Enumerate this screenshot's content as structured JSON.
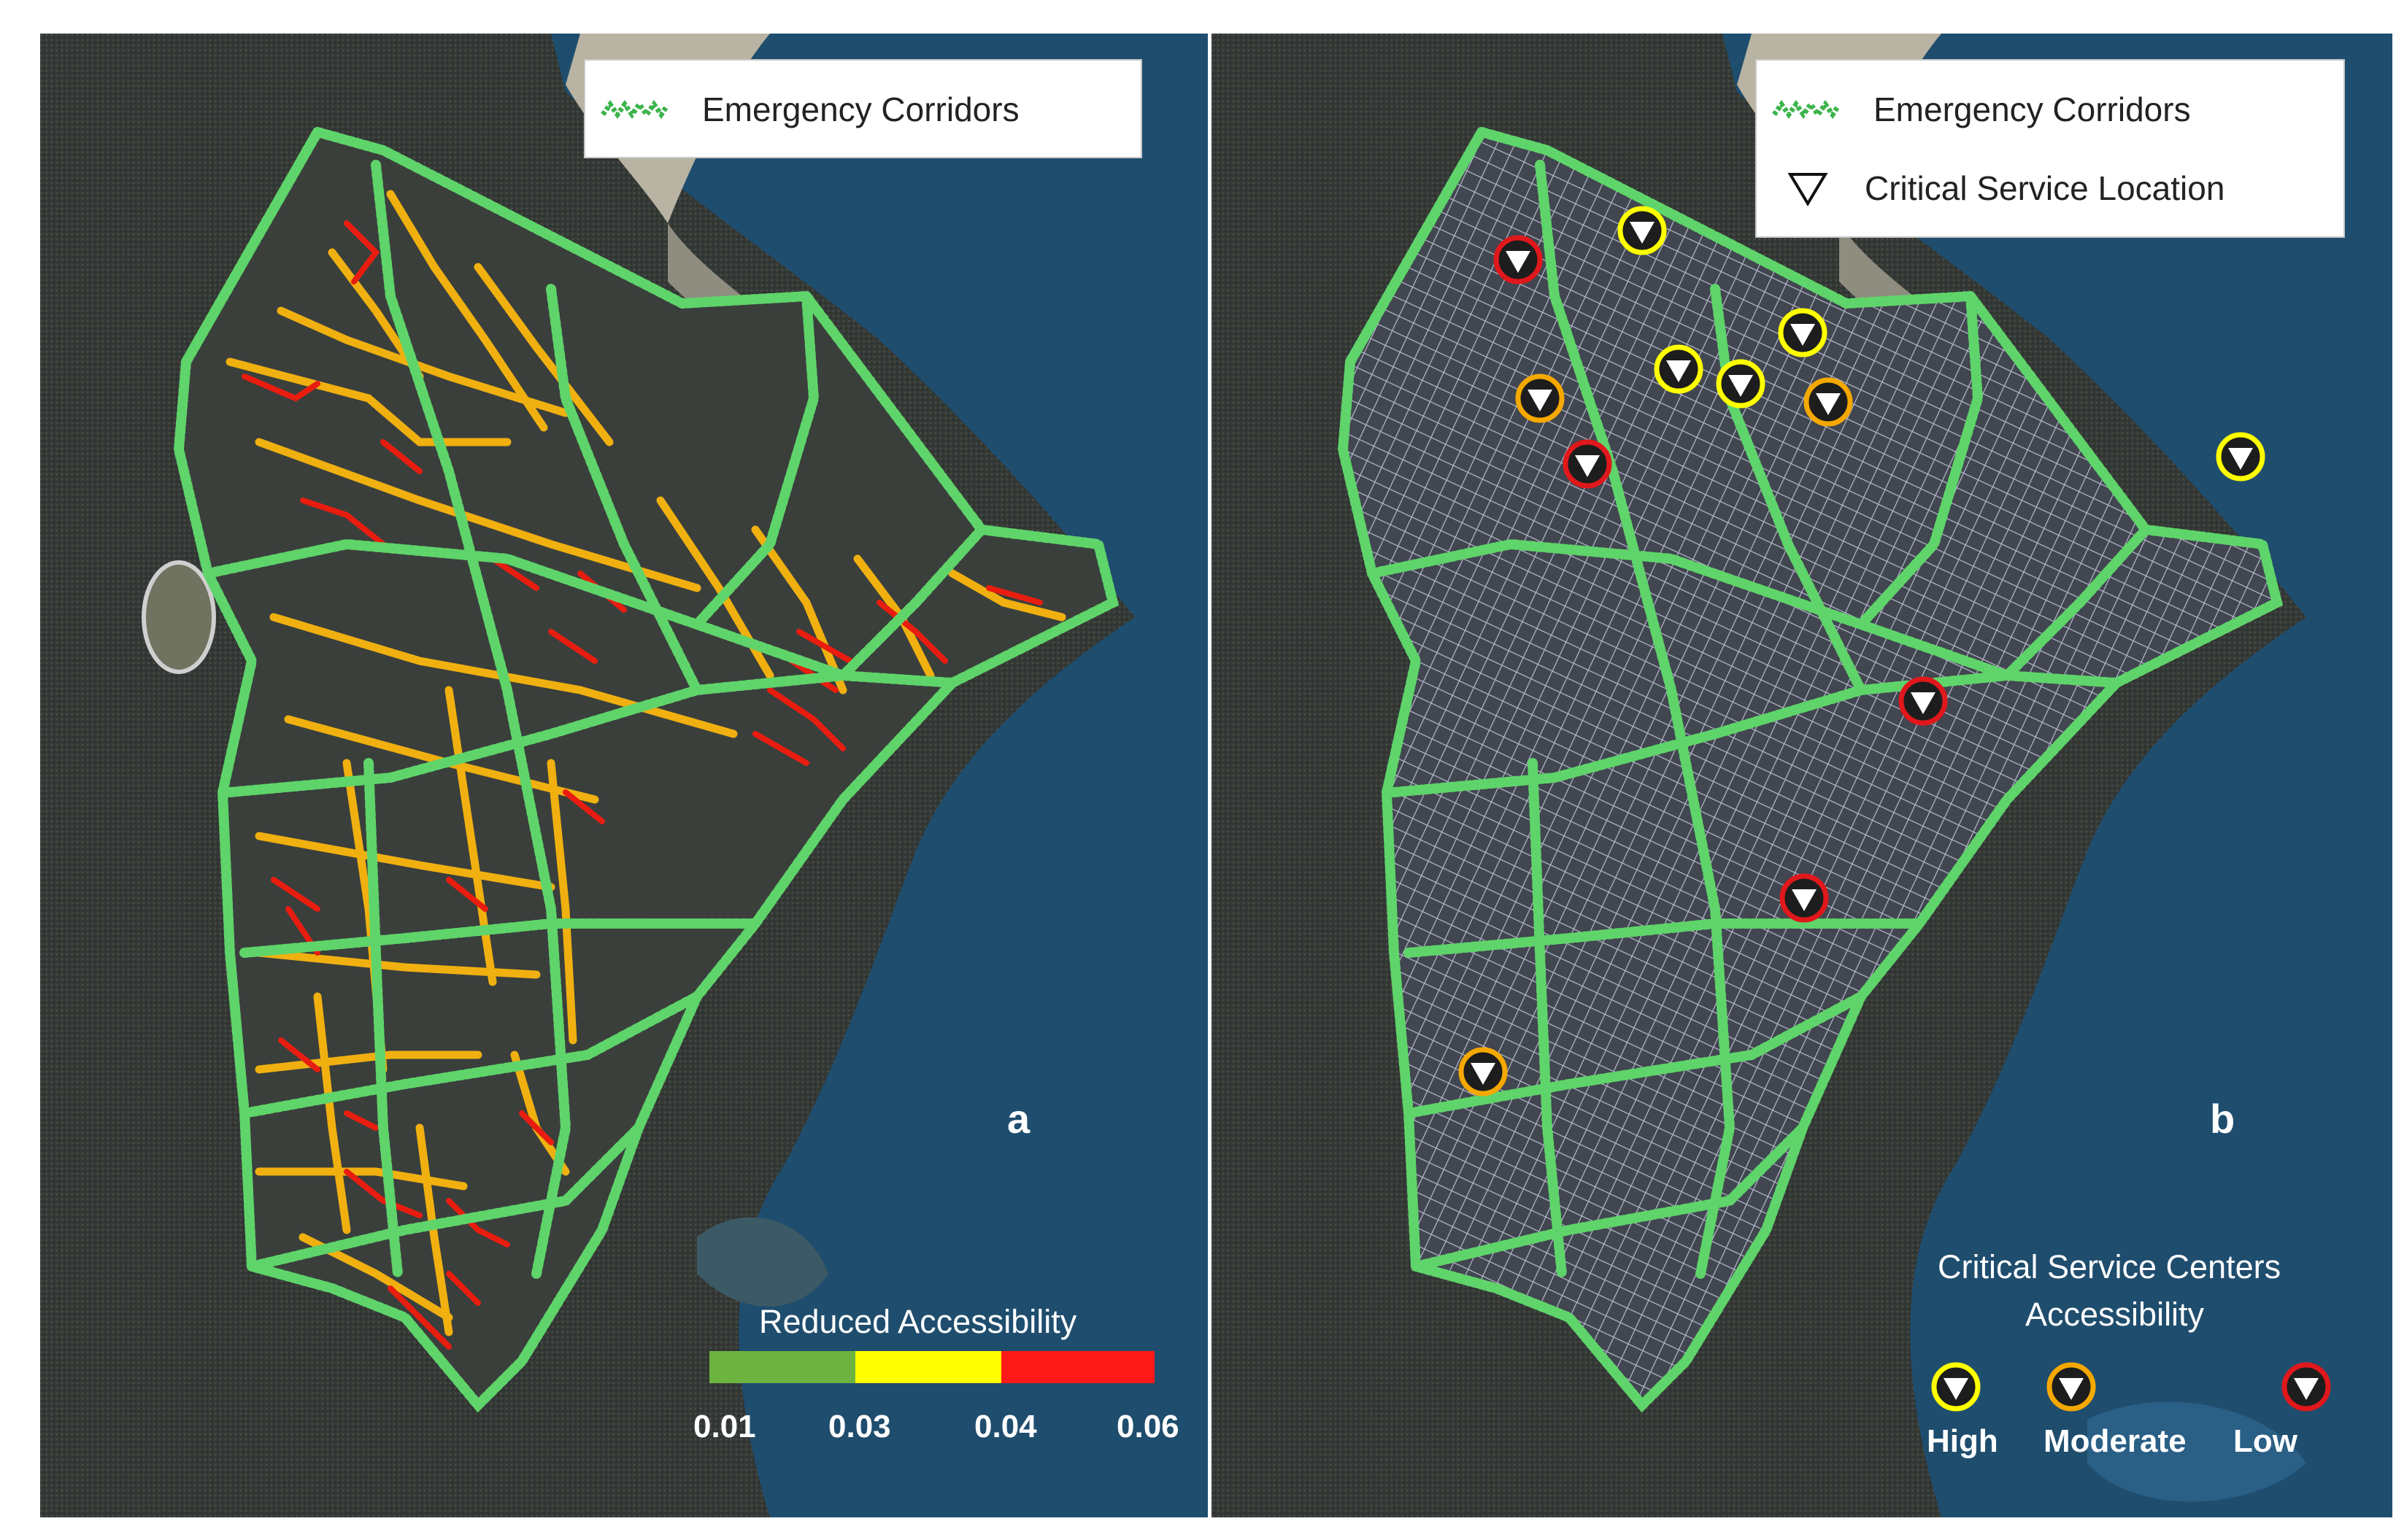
{
  "panel_a": {
    "letter": "a",
    "legend": {
      "corridor_label": "Emergency Corridors"
    },
    "scale": {
      "title": "Reduced Accessibility",
      "colors": [
        "#6db33f",
        "#ffff00",
        "#ff1a1a"
      ],
      "ticks": [
        "0.01",
        "0.03",
        "0.04",
        "0.06"
      ]
    }
  },
  "panel_b": {
    "letter": "b",
    "legend": {
      "corridor_label": "Emergency Corridors",
      "critical_service_label": "Critical Service Location"
    },
    "accessibility": {
      "title_line1": "Critical Service Centers",
      "title_line2": "Accessibility",
      "levels": [
        {
          "label": "High",
          "color": "#ffff00"
        },
        {
          "label": "Moderate",
          "color": "#f5a800"
        },
        {
          "label": "Low",
          "color": "#e0181c"
        }
      ]
    }
  },
  "colors": {
    "corridor": "#5fd46a",
    "water": "#1f4d6e",
    "land": "#2f3432"
  }
}
